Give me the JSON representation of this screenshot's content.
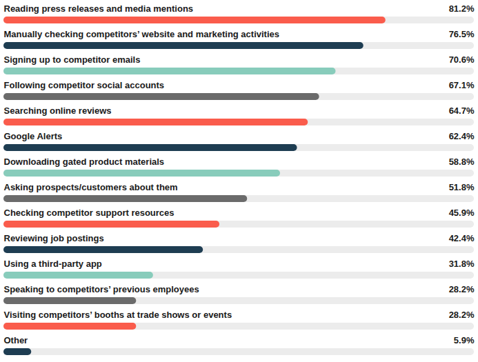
{
  "chart_data": {
    "type": "bar",
    "orientation": "horizontal",
    "categories": [
      "Reading press releases and media mentions",
      "Manually checking competitors’ website and marketing activities",
      "Signing up to competitor emails",
      "Following competitor social accounts",
      "Searching online reviews",
      "Google Alerts",
      "Downloading gated product materials",
      "Asking prospects/customers about them",
      "Checking competitor support resources",
      "Reviewing job postings",
      "Using a third-party app",
      "Speaking to competitors’ previous employees",
      "Visiting competitors’ booths at trade shows or events",
      "Other"
    ],
    "values": [
      81.2,
      76.5,
      70.6,
      67.1,
      64.7,
      62.4,
      58.8,
      51.8,
      45.9,
      42.4,
      31.8,
      28.2,
      28.2,
      5.9
    ],
    "value_labels": [
      "81.2%",
      "76.5%",
      "70.6%",
      "67.1%",
      "64.7%",
      "62.4%",
      "58.8%",
      "51.8%",
      "45.9%",
      "42.4%",
      "31.8%",
      "28.2%",
      "28.2%",
      "5.9%"
    ],
    "colors": [
      "#fa5c4c",
      "#1e3d52",
      "#88ccbb",
      "#6b6b6b",
      "#fa5c4c",
      "#1e3d52",
      "#88ccbb",
      "#6b6b6b",
      "#fa5c4c",
      "#1e3d52",
      "#88ccbb",
      "#6b6b6b",
      "#fa5c4c",
      "#1e3d52"
    ],
    "xlim": [
      0,
      100
    ],
    "data_labels": true,
    "tick_labels": false,
    "grid": false
  }
}
